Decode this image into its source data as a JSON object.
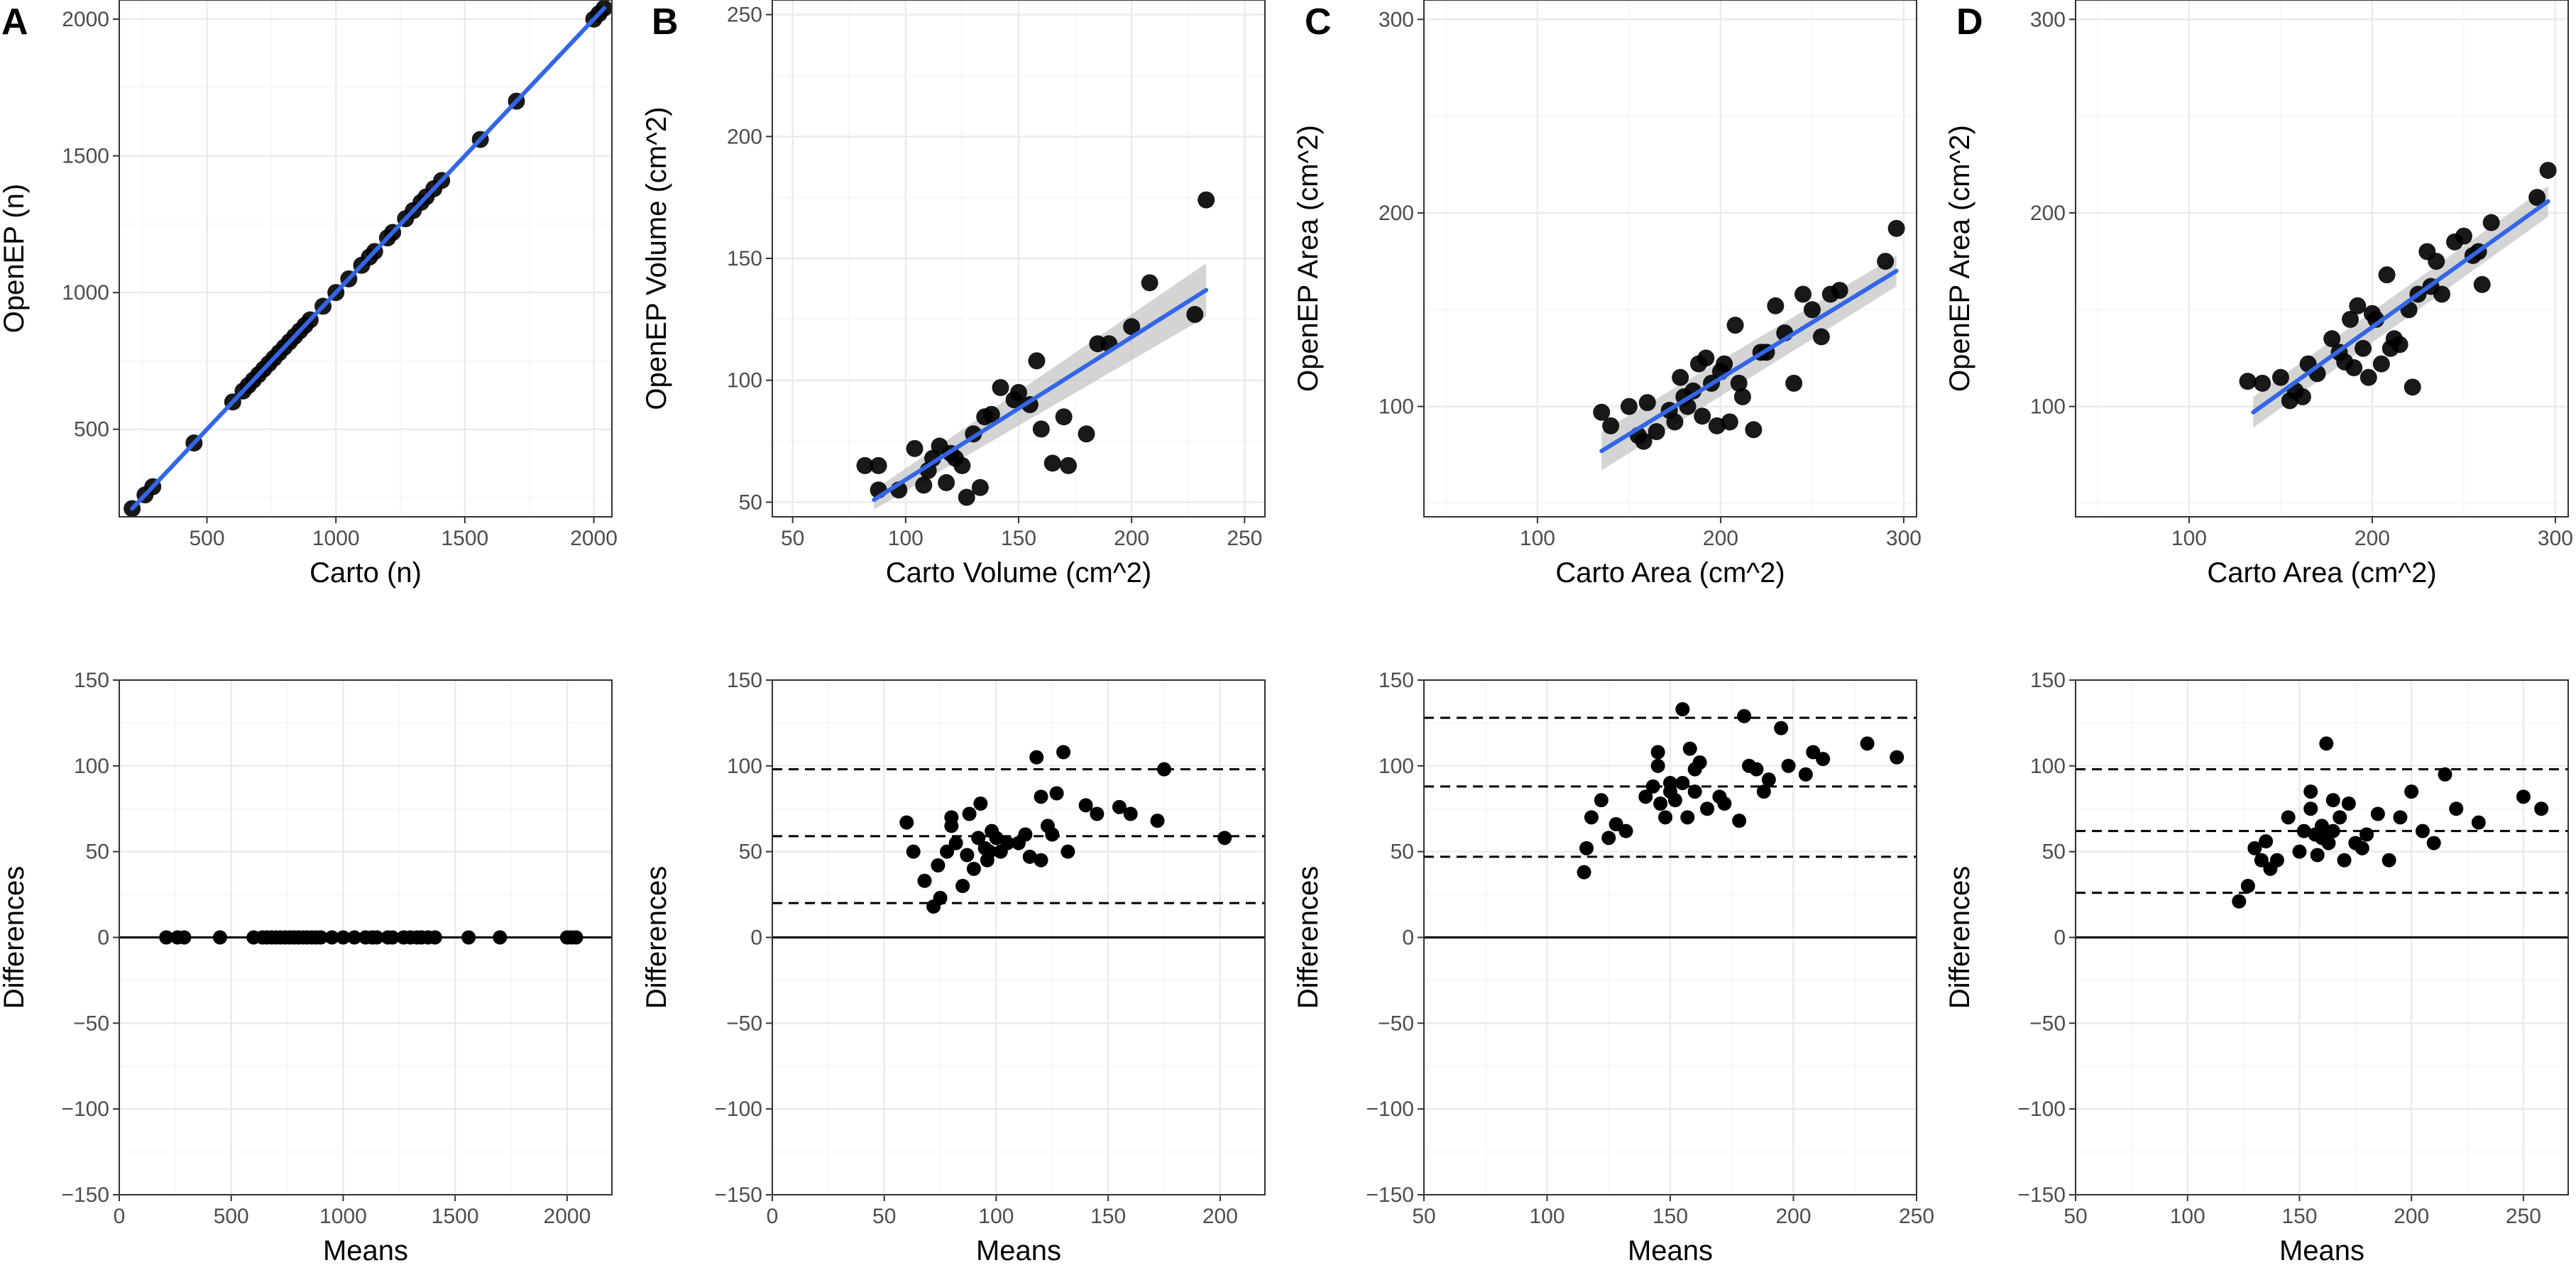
{
  "colors": {
    "fit_line": "#3366e6",
    "ci_band": "#bdbdbd",
    "point": "#000000",
    "grid_major": "#ebebeb",
    "grid_minor": "#f5f5f5",
    "panel_border": "#333333"
  },
  "chart_data": [
    {
      "panel": "A",
      "type": "scatter",
      "xlabel": "Carto (n)",
      "ylabel": "OpenEP (n)",
      "xlim": [
        160,
        2070
      ],
      "ylim": [
        180,
        2070
      ],
      "xticks": [
        500,
        1000,
        1500,
        2000
      ],
      "yticks": [
        500,
        1000,
        1500,
        2000
      ],
      "fit": {
        "from": [
          210,
          210
        ],
        "to": [
          2040,
          2040
        ],
        "ci": [
          0,
          0
        ]
      },
      "x": [
        210,
        260,
        290,
        450,
        600,
        640,
        660,
        680,
        700,
        720,
        740,
        760,
        780,
        800,
        820,
        840,
        860,
        880,
        900,
        950,
        1000,
        1050,
        1100,
        1130,
        1150,
        1200,
        1220,
        1270,
        1300,
        1330,
        1350,
        1380,
        1410,
        1560,
        1700,
        2000,
        2020,
        2040
      ],
      "y": [
        210,
        260,
        290,
        450,
        600,
        640,
        660,
        680,
        700,
        720,
        740,
        760,
        780,
        800,
        820,
        840,
        860,
        880,
        900,
        950,
        1000,
        1050,
        1100,
        1130,
        1150,
        1200,
        1220,
        1270,
        1300,
        1330,
        1350,
        1380,
        1410,
        1560,
        1700,
        2000,
        2020,
        2040
      ]
    },
    {
      "panel": "B",
      "type": "scatter",
      "xlabel": "Carto Volume (cm^2)",
      "ylabel": "OpenEP Volume (cm^2)",
      "xlim": [
        41,
        259
      ],
      "ylim": [
        44,
        256
      ],
      "xticks": [
        50,
        100,
        150,
        200,
        250
      ],
      "yticks": [
        50,
        100,
        150,
        200,
        250
      ],
      "fit": {
        "from": [
          86,
          51
        ],
        "to": [
          233,
          137
        ],
        "ci": [
          4,
          11
        ]
      },
      "x": [
        82,
        88,
        88,
        97,
        104,
        108,
        110,
        112,
        115,
        118,
        120,
        122,
        125,
        127,
        130,
        133,
        135,
        138,
        142,
        148,
        150,
        155,
        158,
        160,
        165,
        170,
        172,
        180,
        185,
        190,
        200,
        208,
        228,
        233
      ],
      "y": [
        65,
        65,
        55,
        55,
        72,
        57,
        63,
        68,
        73,
        58,
        70,
        68,
        65,
        52,
        78,
        56,
        85,
        86,
        97,
        92,
        95,
        90,
        108,
        80,
        66,
        85,
        65,
        78,
        115,
        115,
        122,
        140,
        127,
        174
      ]
    },
    {
      "panel": "C",
      "type": "scatter",
      "xlabel": "Carto Area (cm^2)",
      "ylabel": "OpenEP Area (cm^2)",
      "xlim": [
        38,
        307
      ],
      "ylim": [
        43,
        310
      ],
      "xticks": [
        100,
        200,
        300
      ],
      "yticks": [
        100,
        200,
        300
      ],
      "fit": {
        "from": [
          135,
          77
        ],
        "to": [
          296,
          170
        ],
        "ci": [
          10,
          8
        ]
      },
      "x": [
        135,
        140,
        150,
        155,
        158,
        160,
        165,
        172,
        175,
        178,
        180,
        182,
        185,
        188,
        190,
        192,
        195,
        198,
        200,
        202,
        205,
        208,
        210,
        212,
        218,
        222,
        225,
        230,
        235,
        240,
        245,
        250,
        255,
        260,
        265,
        290,
        296
      ],
      "y": [
        97,
        90,
        100,
        85,
        82,
        102,
        87,
        98,
        92,
        115,
        105,
        100,
        108,
        122,
        95,
        125,
        112,
        90,
        118,
        122,
        92,
        142,
        112,
        105,
        88,
        128,
        128,
        152,
        138,
        112,
        158,
        150,
        136,
        158,
        160,
        175,
        192
      ]
    },
    {
      "panel": "D",
      "type": "scatter",
      "xlabel": "Carto Area (cm^2)",
      "ylabel": "OpenEP Area (cm^2)",
      "xlim": [
        38,
        307
      ],
      "ylim": [
        43,
        310
      ],
      "xticks": [
        100,
        200,
        300
      ],
      "yticks": [
        100,
        200,
        300
      ],
      "fit": {
        "from": [
          135,
          97
        ],
        "to": [
          296,
          206
        ],
        "ci": [
          8,
          8
        ]
      },
      "x": [
        132,
        140,
        150,
        155,
        158,
        162,
        165,
        170,
        178,
        182,
        185,
        188,
        190,
        192,
        195,
        198,
        200,
        202,
        205,
        208,
        210,
        212,
        215,
        220,
        222,
        225,
        230,
        232,
        235,
        238,
        245,
        250,
        255,
        258,
        260,
        265,
        290,
        296
      ],
      "y": [
        113,
        112,
        115,
        103,
        108,
        105,
        122,
        117,
        135,
        128,
        123,
        145,
        120,
        152,
        130,
        115,
        148,
        145,
        122,
        168,
        130,
        135,
        132,
        150,
        110,
        158,
        180,
        162,
        175,
        158,
        185,
        188,
        178,
        180,
        163,
        195,
        208,
        222
      ]
    },
    {
      "panel": "A-bland-altman",
      "type": "scatter",
      "xlabel": "Means",
      "ylabel": "Differences",
      "xlim": [
        0,
        2200
      ],
      "ylim": [
        -150,
        150
      ],
      "xticks": [
        0,
        500,
        1000,
        1500,
        2000
      ],
      "yticks": [
        -150,
        -100,
        -50,
        0,
        50,
        100,
        150
      ],
      "hlines": {
        "zero": 0,
        "mean": 0,
        "upper": 0,
        "lower": 0
      },
      "x": [
        210,
        260,
        290,
        450,
        600,
        640,
        660,
        680,
        700,
        720,
        740,
        760,
        780,
        800,
        820,
        840,
        860,
        880,
        900,
        950,
        1000,
        1050,
        1100,
        1130,
        1150,
        1200,
        1220,
        1270,
        1300,
        1330,
        1350,
        1380,
        1410,
        1560,
        1700,
        2000,
        2020,
        2040
      ],
      "y": [
        0,
        0,
        0,
        0,
        0,
        0,
        0,
        0,
        0,
        0,
        0,
        0,
        0,
        0,
        0,
        0,
        0,
        0,
        0,
        0,
        0,
        0,
        0,
        0,
        0,
        0,
        0,
        0,
        0,
        0,
        0,
        0,
        0,
        0,
        0,
        0,
        0,
        0
      ]
    },
    {
      "panel": "B-bland-altman",
      "type": "scatter",
      "xlabel": "Means",
      "ylabel": "Differences",
      "xlim": [
        0,
        220
      ],
      "ylim": [
        -150,
        150
      ],
      "xticks": [
        0,
        50,
        100,
        150,
        200
      ],
      "yticks": [
        -150,
        -100,
        -50,
        0,
        50,
        100,
        150
      ],
      "hlines": {
        "zero": 0,
        "mean": 59,
        "upper": 98,
        "lower": 20
      },
      "x": [
        60,
        63,
        68,
        72,
        74,
        75,
        78,
        80,
        80,
        82,
        85,
        87,
        88,
        90,
        92,
        93,
        95,
        96,
        97,
        98,
        100,
        102,
        105,
        110,
        113,
        115,
        118,
        120,
        120,
        123,
        125,
        127,
        130,
        132,
        140,
        145,
        155,
        160,
        172,
        175,
        202
      ],
      "y": [
        67,
        50,
        33,
        18,
        42,
        23,
        50,
        65,
        70,
        55,
        30,
        48,
        72,
        40,
        58,
        78,
        52,
        45,
        50,
        62,
        58,
        50,
        55,
        55,
        60,
        47,
        105,
        82,
        45,
        65,
        60,
        84,
        108,
        50,
        77,
        72,
        76,
        72,
        68,
        98,
        58
      ]
    },
    {
      "panel": "C-bland-altman",
      "type": "scatter",
      "xlabel": "Means",
      "ylabel": "Differences",
      "xlim": [
        50,
        250
      ],
      "ylim": [
        -150,
        150
      ],
      "xticks": [
        50,
        100,
        150,
        200,
        250
      ],
      "yticks": [
        -150,
        -100,
        -50,
        0,
        50,
        100,
        150
      ],
      "hlines": {
        "zero": 0,
        "mean": 88,
        "upper": 128,
        "lower": 47
      },
      "x": [
        115,
        116,
        118,
        122,
        125,
        128,
        132,
        140,
        143,
        145,
        145,
        146,
        148,
        150,
        150,
        152,
        155,
        155,
        157,
        158,
        160,
        160,
        162,
        165,
        170,
        172,
        178,
        180,
        182,
        185,
        188,
        190,
        195,
        198,
        205,
        208,
        212,
        230,
        242
      ],
      "y": [
        38,
        52,
        70,
        80,
        58,
        66,
        62,
        82,
        88,
        108,
        100,
        78,
        70,
        90,
        85,
        80,
        133,
        90,
        70,
        110,
        98,
        85,
        102,
        75,
        82,
        78,
        68,
        129,
        100,
        98,
        85,
        92,
        122,
        100,
        95,
        108,
        104,
        113,
        105
      ]
    },
    {
      "panel": "D-bland-altman",
      "type": "scatter",
      "xlabel": "Means",
      "ylabel": "Differences",
      "xlim": [
        50,
        270
      ],
      "ylim": [
        -150,
        150
      ],
      "xticks": [
        50,
        100,
        150,
        200,
        250
      ],
      "yticks": [
        -150,
        -100,
        -50,
        0,
        50,
        100,
        150
      ],
      "hlines": {
        "zero": 0,
        "mean": 62,
        "upper": 98,
        "lower": 26
      },
      "x": [
        123,
        127,
        130,
        133,
        135,
        137,
        140,
        145,
        150,
        152,
        155,
        155,
        157,
        158,
        160,
        160,
        162,
        163,
        165,
        165,
        168,
        170,
        172,
        175,
        178,
        180,
        185,
        190,
        195,
        200,
        205,
        210,
        215,
        220,
        230,
        250,
        258
      ],
      "y": [
        21,
        30,
        52,
        45,
        56,
        40,
        45,
        70,
        50,
        62,
        75,
        85,
        60,
        48,
        58,
        65,
        113,
        55,
        80,
        62,
        70,
        45,
        78,
        55,
        52,
        60,
        72,
        45,
        70,
        85,
        62,
        55,
        95,
        75,
        67,
        82,
        75
      ]
    }
  ]
}
